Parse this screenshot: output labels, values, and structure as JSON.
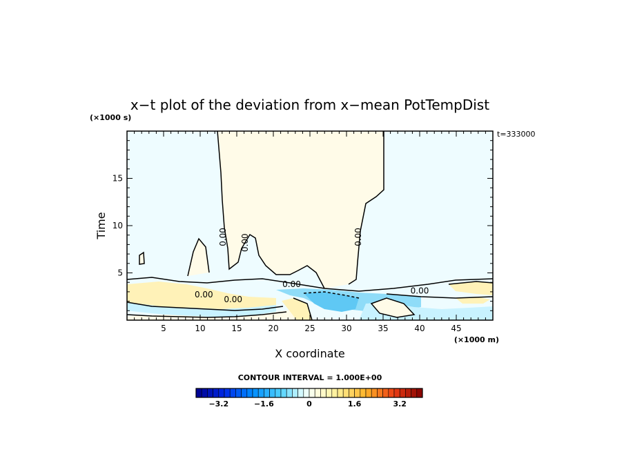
{
  "chart_data": {
    "type": "heatmap",
    "title": "x−t plot of the deviation from x−mean PotTempDist",
    "xlabel": "X coordinate",
    "ylabel": "Time",
    "x_unit_label": "(×1000 m)",
    "y_unit_label": "(×1000 s)",
    "time_stamp": "t=333000",
    "xlim": [
      0,
      50
    ],
    "ylim": [
      0,
      20
    ],
    "x_ticks": [
      5,
      10,
      15,
      20,
      25,
      30,
      35,
      40,
      45
    ],
    "y_ticks": [
      5,
      10,
      15
    ],
    "contour_interval_label": "CONTOUR INTERVAL = 1.000E+00",
    "contour_labels": [
      {
        "text": "0.00",
        "x": 13.5,
        "y": 8.8
      },
      {
        "text": "0.00",
        "x": 16.5,
        "y": 8.2
      },
      {
        "text": "0.00",
        "x": 32.0,
        "y": 8.8
      },
      {
        "text": "0.00",
        "x": 22.5,
        "y": 3.5
      },
      {
        "text": "0.00",
        "x": 10.5,
        "y": 2.4
      },
      {
        "text": "0.00",
        "x": 14.5,
        "y": 1.9
      },
      {
        "text": "0.00",
        "x": 40.0,
        "y": 2.8
      }
    ],
    "colorbar": {
      "min": -4.0,
      "max": 4.0,
      "step": 0.2,
      "tick_values": [
        -3.2,
        -1.6,
        0,
        1.6,
        3.2
      ],
      "tick_labels": [
        "−3.2",
        "−1.6",
        "0",
        "1.6",
        "3.2"
      ]
    },
    "colors": {
      "neutral_positive": "#fffbe8",
      "neutral_negative": "#eefcff",
      "warm": "#fff2b8",
      "cool": "#c8f2ff",
      "cold": "#5fc8f4"
    }
  }
}
